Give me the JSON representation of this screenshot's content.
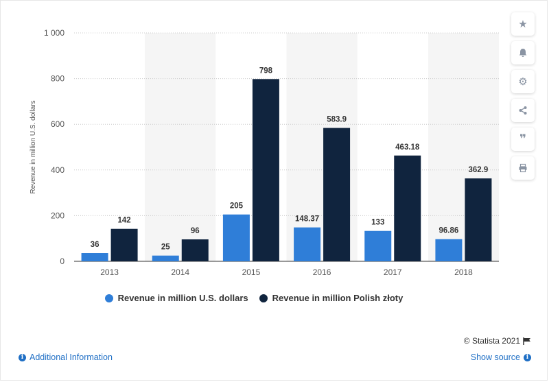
{
  "chart_data": {
    "type": "bar",
    "categories": [
      "2013",
      "2014",
      "2015",
      "2016",
      "2017",
      "2018"
    ],
    "series": [
      {
        "name": "Revenue in million U.S. dollars",
        "values": [
          36,
          25,
          205,
          148.37,
          133,
          96.86
        ],
        "labels": [
          "36",
          "25",
          "205",
          "148.37",
          "133",
          "96.86"
        ],
        "color": "#2f7ed8"
      },
      {
        "name": "Revenue in million Polish złoty",
        "values": [
          142,
          96,
          798,
          583.9,
          463.18,
          362.9
        ],
        "labels": [
          "142",
          "96",
          "798",
          "583.9",
          "463.18",
          "362.9"
        ],
        "color": "#10243e"
      }
    ],
    "ylabel": "Revenue in million U.S. dollars",
    "ylim": [
      0,
      1000
    ],
    "yticks": [
      0,
      200,
      400,
      600,
      800,
      1000
    ],
    "ytick_labels": [
      "0",
      "200",
      "400",
      "600",
      "800",
      "1 000"
    ],
    "grid": true,
    "legend_position": "bottom"
  },
  "footer": {
    "credit": "© Statista 2021",
    "additional_info": "Additional Information",
    "show_source": "Show source"
  },
  "sidebar": {
    "icons": [
      "star-icon",
      "bell-icon",
      "gear-icon",
      "share-icon",
      "quote-icon",
      "print-icon"
    ]
  }
}
